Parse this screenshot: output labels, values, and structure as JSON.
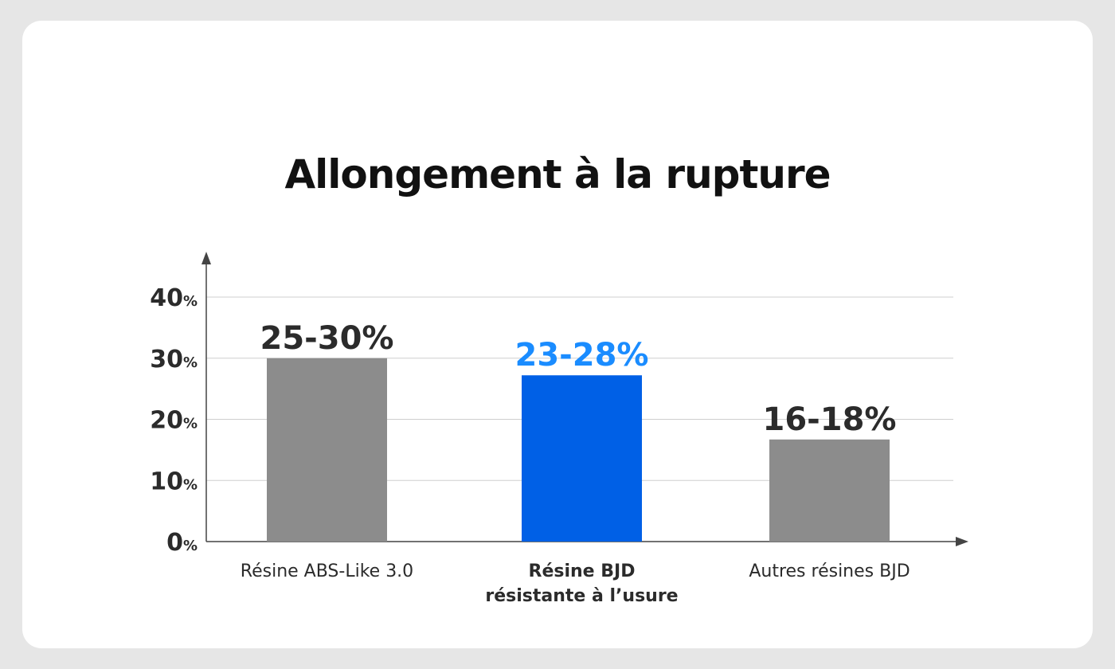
{
  "chart_data": {
    "type": "bar",
    "title": "Allongement à la rupture",
    "xlabel": "",
    "ylabel": "",
    "ylim": [
      0,
      40
    ],
    "yticks": [
      0,
      10,
      20,
      30,
      40
    ],
    "ytick_unit": "%",
    "grid": true,
    "categories": [
      [
        "Résine ABS-Like 3.0"
      ],
      [
        "Résine BJD",
        "résistante à l’usure"
      ],
      [
        "Autres résines BJD"
      ]
    ],
    "category_bold": [
      false,
      true,
      false
    ],
    "values": [
      30,
      27.2,
      16.7
    ],
    "data_labels": [
      "25-30%",
      "23-28%",
      "16-18%"
    ],
    "bar_colors": [
      "#8c8c8c",
      "#0060e6",
      "#8c8c8c"
    ],
    "label_colors": [
      "#2b2b2b",
      "#1a8cff",
      "#2b2b2b"
    ]
  }
}
